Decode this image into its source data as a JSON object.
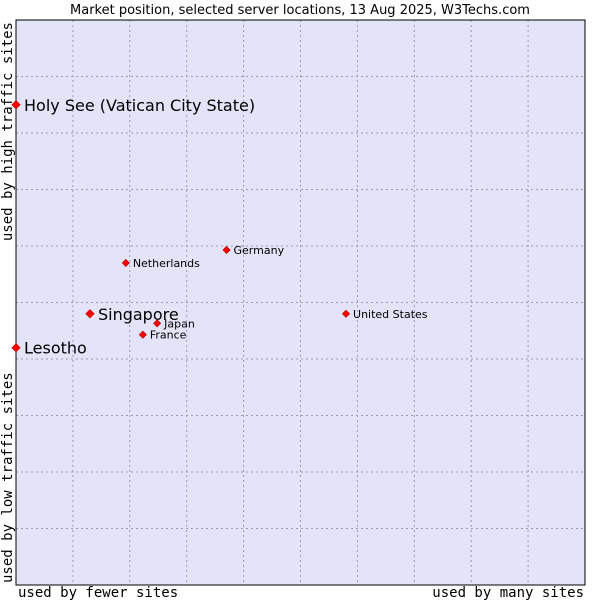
{
  "chart_data": {
    "type": "scatter",
    "title": "Market position, selected server locations, 13 Aug 2025, W3Techs.com",
    "xlabel_left": "used by fewer sites",
    "xlabel_right": "used by many sites",
    "ylabel_bottom": "used by low traffic sites",
    "ylabel_top": "used by high traffic sites",
    "xlim": [
      0,
      10
    ],
    "ylim": [
      0,
      10
    ],
    "grid": true,
    "colors": {
      "plot_background": "#e3e4f8",
      "grid": "#9a9ab8",
      "point": "#ff0000",
      "border": "#000000"
    },
    "points": [
      {
        "label": "Holy See (Vatican City State)",
        "x": 0.0,
        "y": 8.5,
        "highlight": true
      },
      {
        "label": "Lesotho",
        "x": 0.0,
        "y": 4.2,
        "highlight": true
      },
      {
        "label": "Singapore",
        "x": 1.3,
        "y": 4.8,
        "highlight": true
      },
      {
        "label": "Netherlands",
        "x": 1.93,
        "y": 5.7,
        "highlight": false
      },
      {
        "label": "Germany",
        "x": 3.7,
        "y": 5.93,
        "highlight": false
      },
      {
        "label": "United States",
        "x": 5.8,
        "y": 4.8,
        "highlight": false
      },
      {
        "label": "Japan",
        "x": 2.48,
        "y": 4.63,
        "highlight": false
      },
      {
        "label": "France",
        "x": 2.23,
        "y": 4.43,
        "highlight": false
      }
    ]
  }
}
